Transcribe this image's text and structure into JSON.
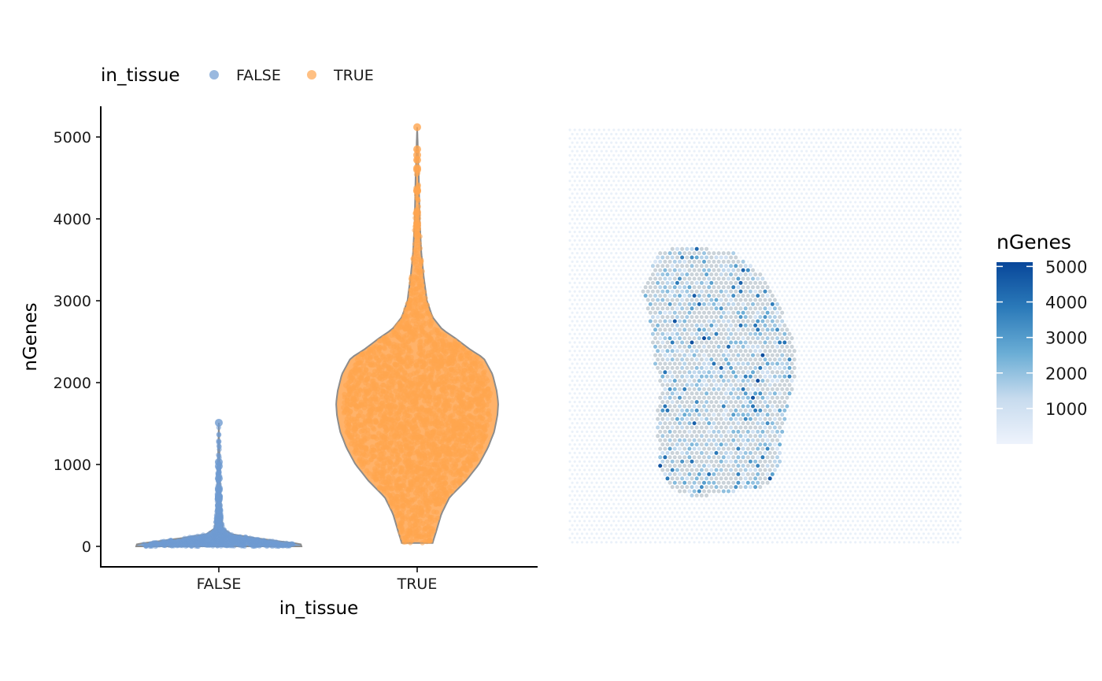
{
  "chart_data": [
    {
      "type": "violin",
      "xlabel": "in_tissue",
      "ylabel": "nGenes",
      "categories": [
        "FALSE",
        "TRUE"
      ],
      "ylim": [
        -250,
        5400
      ],
      "yticks": [
        0,
        1000,
        2000,
        3000,
        4000,
        5000
      ],
      "ytick_labels": [
        "0",
        "1000",
        "2000",
        "3000",
        "4000",
        "5000"
      ],
      "legend": {
        "title": "in_tissue",
        "position": "top-left",
        "entries": [
          "FALSE",
          "TRUE"
        ]
      },
      "colors": {
        "FALSE": "#6f9bd1",
        "TRUE": "#ffa54f",
        "outline": "#8c8c8c"
      },
      "series": [
        {
          "name": "FALSE",
          "max": 1510,
          "outliers": [
            1510,
            1030,
            980,
            830,
            710,
            690,
            610,
            600,
            580,
            500,
            450
          ],
          "violin_profile": [
            [
              0,
              1.0
            ],
            [
              30,
              0.99
            ],
            [
              60,
              0.75
            ],
            [
              100,
              0.45
            ],
            [
              150,
              0.15
            ],
            [
              220,
              0.05
            ],
            [
              400,
              0.03
            ],
            [
              800,
              0.015
            ],
            [
              1510,
              0.0
            ]
          ]
        },
        {
          "name": "TRUE",
          "min": 40,
          "max": 5120,
          "outliers": [
            5120,
            4850,
            4780,
            4720,
            4620,
            4600,
            4350,
            4340,
            4080,
            3950,
            3920,
            3880,
            3800
          ],
          "violin_profile": [
            [
              40,
              0.19
            ],
            [
              200,
              0.24
            ],
            [
              400,
              0.3
            ],
            [
              600,
              0.4
            ],
            [
              800,
              0.6
            ],
            [
              1000,
              0.76
            ],
            [
              1200,
              0.87
            ],
            [
              1400,
              0.95
            ],
            [
              1600,
              0.99
            ],
            [
              1750,
              1.0
            ],
            [
              1900,
              0.98
            ],
            [
              2100,
              0.93
            ],
            [
              2300,
              0.82
            ],
            [
              2400,
              0.66
            ],
            [
              2550,
              0.46
            ],
            [
              2650,
              0.31
            ],
            [
              2800,
              0.19
            ],
            [
              3000,
              0.12
            ],
            [
              3300,
              0.08
            ],
            [
              3600,
              0.05
            ],
            [
              4000,
              0.03
            ],
            [
              4500,
              0.02
            ],
            [
              5120,
              0.0
            ]
          ]
        }
      ]
    },
    {
      "type": "spatial-heatmap",
      "legend": {
        "title": "nGenes",
        "range": [
          0,
          5120
        ],
        "ticks": [
          1000,
          2000,
          3000,
          4000,
          5000
        ],
        "tick_labels": [
          "1000",
          "2000",
          "3000",
          "4000",
          "5000"
        ],
        "colors": [
          "#eef3fc",
          "#c7dbee",
          "#6aadd5",
          "#2b7ab9",
          "#08479a"
        ]
      },
      "tissue_color": "#c9d2d9",
      "background_spot_color": "#eaf1f9"
    }
  ]
}
